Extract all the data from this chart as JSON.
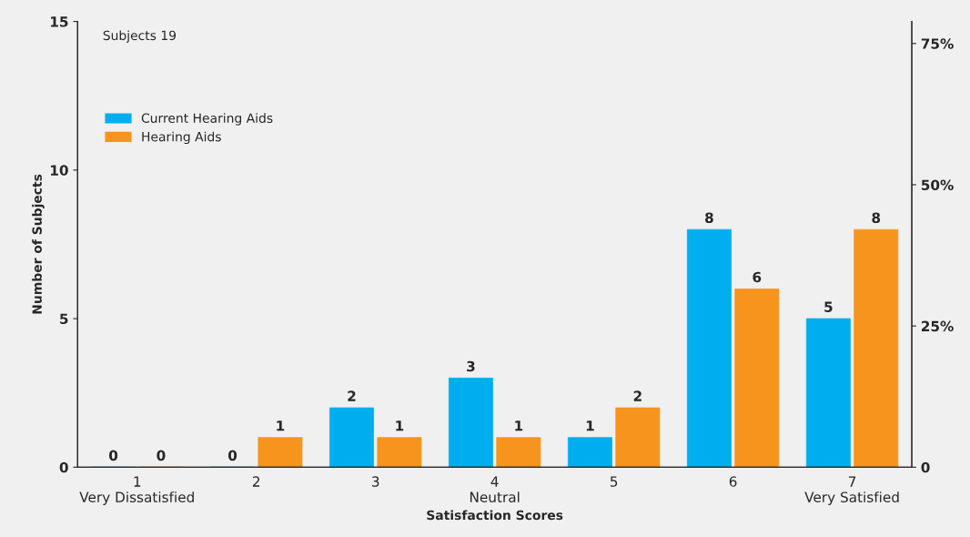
{
  "chart_data": {
    "type": "bar",
    "categories": [
      "1\nVery Dissatisfied",
      "2",
      "3",
      "4\nNeutral",
      "5",
      "6",
      "7\nVery Satisfied"
    ],
    "series": [
      {
        "name": "Current Hearing Aids",
        "color": "#00aeef",
        "values": [
          0,
          0,
          2,
          3,
          1,
          8,
          5
        ]
      },
      {
        "name": "Hearing Aids",
        "color": "#f7941d",
        "values": [
          0,
          1,
          1,
          1,
          2,
          6,
          8
        ]
      }
    ],
    "xlabel": "Satisfaction Scores",
    "ylabel": "Number of Subjects",
    "ylim": [
      0,
      15
    ],
    "yticks": [
      0,
      5,
      10,
      15
    ],
    "y2lim": [
      0,
      78.9
    ],
    "y2ticks": [
      0,
      {
        "value": 25,
        "label": "25%"
      },
      {
        "value": 50,
        "label": "50%"
      },
      {
        "value": 75,
        "label": "75%"
      }
    ],
    "annotations": [
      "Subjects 19"
    ],
    "data_labels": true,
    "grid": false,
    "legend": "top left"
  }
}
